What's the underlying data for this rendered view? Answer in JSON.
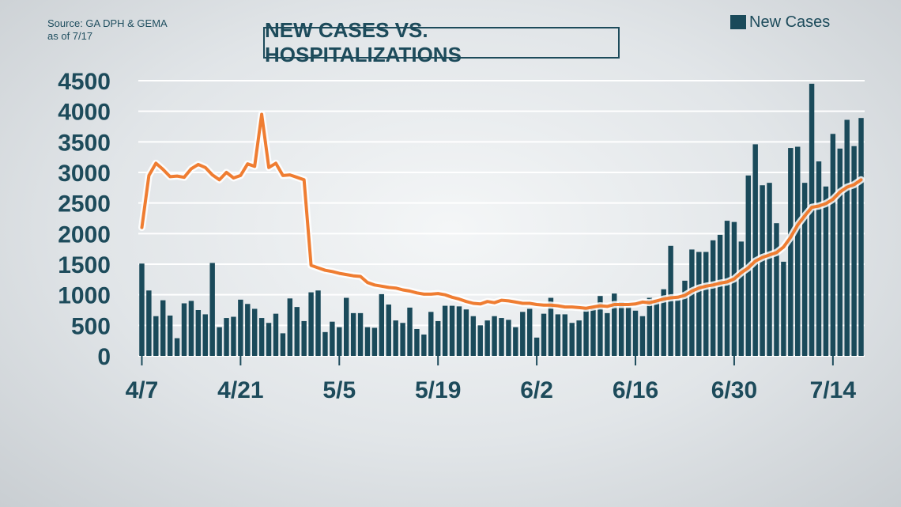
{
  "source_line1": "Source: GA DPH & GEMA",
  "source_line2": "as of 7/17",
  "title": "NEW CASES VS. HOSPITALIZATIONS",
  "legend_label": "New Cases",
  "colors": {
    "bar": "#1a4a5a",
    "line": "#ef7d32",
    "text": "#1d4b5b",
    "grid": "#ffffff"
  },
  "chart_data": {
    "type": "bar",
    "title": "NEW CASES VS. HOSPITALIZATIONS",
    "ylim": [
      0,
      4500
    ],
    "y_ticks": [
      "0",
      "500",
      "1000",
      "1500",
      "2000",
      "2500",
      "3000",
      "3500",
      "4000",
      "4500"
    ],
    "x_tick_labels": [
      "4/7",
      "4/21",
      "5/5",
      "5/19",
      "6/2",
      "6/16",
      "6/30",
      "7/14"
    ],
    "x_tick_positions": [
      0,
      14,
      28,
      42,
      56,
      70,
      84,
      98
    ],
    "grid": true,
    "legend_position": "top-right",
    "series": [
      {
        "name": "New Cases",
        "type": "bar",
        "values": [
          1510,
          1070,
          650,
          910,
          660,
          290,
          860,
          900,
          750,
          680,
          1520,
          470,
          620,
          640,
          920,
          850,
          770,
          620,
          540,
          690,
          370,
          940,
          800,
          570,
          1040,
          1070,
          390,
          560,
          470,
          950,
          700,
          700,
          470,
          460,
          1010,
          840,
          580,
          540,
          790,
          440,
          350,
          720,
          570,
          820,
          820,
          810,
          760,
          650,
          500,
          580,
          650,
          620,
          590,
          470,
          720,
          770,
          300,
          690,
          950,
          680,
          680,
          540,
          580,
          780,
          770,
          980,
          700,
          1020,
          880,
          800,
          740,
          650,
          950,
          920,
          1090,
          1800,
          920,
          1230,
          1740,
          1700,
          1700,
          1890,
          1980,
          2210,
          2190,
          1870,
          2950,
          3460,
          2790,
          2830,
          2170,
          1540,
          3400,
          3420,
          2830,
          4450,
          3180,
          2770,
          3630,
          3390,
          3860,
          3430,
          3890
        ]
      },
      {
        "name": "Hospitalizations",
        "type": "line",
        "values": [
          2100,
          2950,
          3150,
          3050,
          2930,
          2940,
          2920,
          3060,
          3130,
          3080,
          2960,
          2880,
          3000,
          2910,
          2950,
          3140,
          3100,
          3950,
          3080,
          3150,
          2950,
          2960,
          2920,
          2880,
          1480,
          1440,
          1400,
          1380,
          1350,
          1330,
          1310,
          1300,
          1200,
          1160,
          1140,
          1120,
          1110,
          1080,
          1060,
          1030,
          1010,
          1010,
          1020,
          1000,
          960,
          930,
          890,
          860,
          850,
          890,
          870,
          910,
          900,
          880,
          860,
          860,
          840,
          830,
          830,
          820,
          800,
          800,
          790,
          780,
          800,
          820,
          810,
          840,
          840,
          840,
          850,
          880,
          870,
          900,
          930,
          950,
          960,
          990,
          1060,
          1110,
          1140,
          1160,
          1190,
          1210,
          1260,
          1360,
          1440,
          1550,
          1610,
          1650,
          1690,
          1780,
          1940,
          2140,
          2290,
          2430,
          2450,
          2490,
          2560,
          2680,
          2760,
          2800,
          2880
        ]
      }
    ]
  }
}
